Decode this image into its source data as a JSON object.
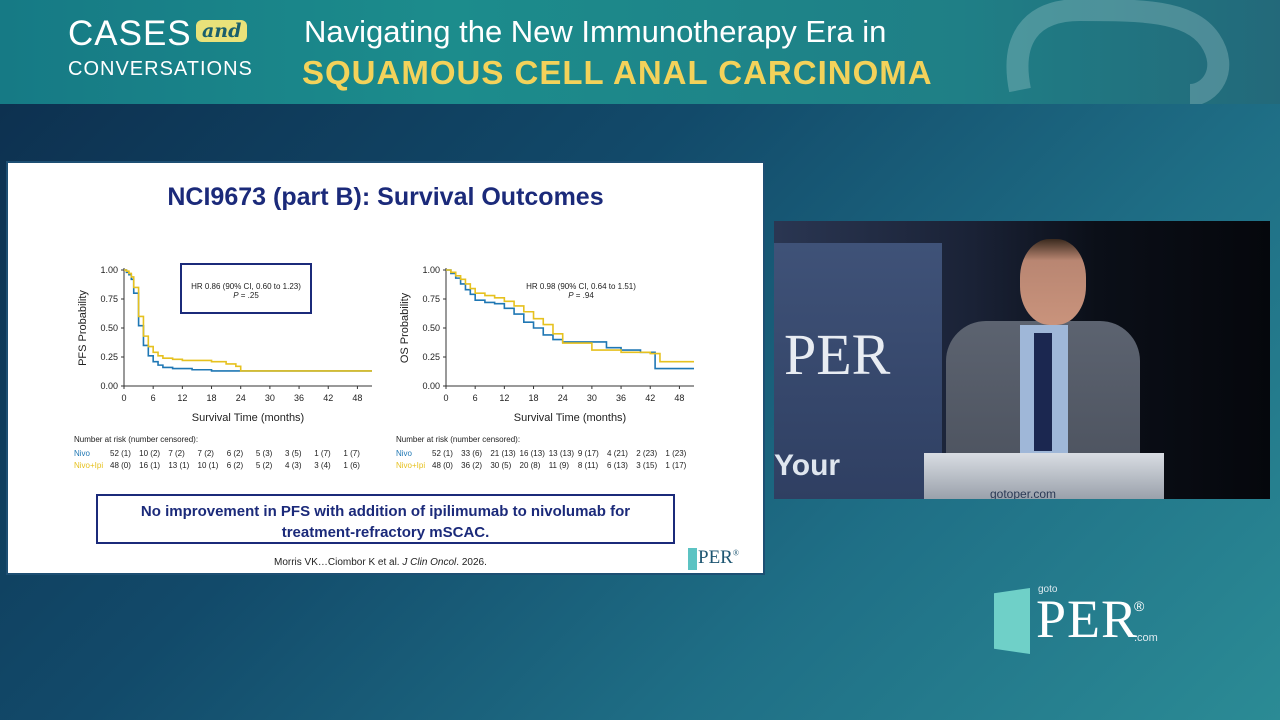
{
  "banner": {
    "brand_top": "CASES",
    "brand_and": "and",
    "brand_bottom": "CONVERSATIONS",
    "title_line1": "Navigating the New Immunotherapy Era in",
    "title_line2": "SQUAMOUS CELL ANAL CARCINOMA"
  },
  "slide": {
    "title": "NCI9673 (part B): Survival Outcomes",
    "conclusion_line1": "No improvement in PFS with addition of ipilimumab to nivolumab for",
    "conclusion_line2": "treatment-refractory mSCAC.",
    "citation_prefix": "Morris VK…Ciombor K et al. ",
    "citation_journal": "J Clin Oncol",
    "citation_year": ". 2026.",
    "per_logo": "PER",
    "per_reg": "®"
  },
  "chart_data": [
    {
      "type": "line",
      "panel": "PFS",
      "ylabel": "PFS Probability",
      "xlabel": "Survival Time (months)",
      "xticks": [
        "0",
        "6",
        "12",
        "18",
        "24",
        "30",
        "36",
        "42",
        "48"
      ],
      "yticks": [
        "0.00",
        "0.25",
        "0.50",
        "0.75",
        "1.00"
      ],
      "xlim": [
        0,
        51
      ],
      "ylim": [
        0,
        1
      ],
      "hr_line1": "HR 0.86 (90% CI, 0.60 to 1.23)",
      "hr_p_label": "P",
      "hr_p_value": " = .25",
      "series": [
        {
          "name": "Nivo",
          "color": "#1f77b4",
          "x": [
            0,
            0.5,
            1,
            1.5,
            2,
            3,
            4,
            5,
            6,
            7,
            8,
            10,
            12,
            14,
            18,
            24,
            30,
            36,
            42,
            48,
            51
          ],
          "y": [
            1.0,
            0.98,
            0.96,
            0.92,
            0.8,
            0.52,
            0.35,
            0.26,
            0.21,
            0.18,
            0.16,
            0.15,
            0.15,
            0.14,
            0.13,
            0.13,
            0.13,
            0.13,
            0.13,
            0.13,
            0.13
          ]
        },
        {
          "name": "Nivo+Ipi",
          "color": "#e6c11f",
          "x": [
            0,
            0.5,
            1,
            1.5,
            2,
            3,
            4,
            5,
            6,
            7,
            8,
            10,
            12,
            14,
            18,
            21,
            23,
            24,
            30,
            36,
            42,
            48,
            51
          ],
          "y": [
            1.0,
            0.99,
            0.97,
            0.94,
            0.85,
            0.6,
            0.43,
            0.34,
            0.29,
            0.26,
            0.24,
            0.23,
            0.22,
            0.22,
            0.21,
            0.19,
            0.17,
            0.13,
            0.13,
            0.13,
            0.13,
            0.13,
            0.13
          ]
        }
      ],
      "risk_header": "Number at risk (number censored):",
      "risk_rows": [
        {
          "label": "Nivo",
          "values": [
            "52 (1)",
            "10 (2)",
            "7 (2)",
            "7 (2)",
            "6 (2)",
            "5 (3)",
            "3 (5)",
            "1 (7)",
            "1 (7)"
          ]
        },
        {
          "label": "Nivo+Ipi",
          "values": [
            "48 (0)",
            "16 (1)",
            "13 (1)",
            "10 (1)",
            "6 (2)",
            "5 (2)",
            "4 (3)",
            "3 (4)",
            "1 (6)"
          ]
        }
      ]
    },
    {
      "type": "line",
      "panel": "OS",
      "ylabel": "OS Probability",
      "xlabel": "Survival Time (months)",
      "xticks": [
        "0",
        "6",
        "12",
        "18",
        "24",
        "30",
        "36",
        "42",
        "48"
      ],
      "yticks": [
        "0.00",
        "0.25",
        "0.50",
        "0.75",
        "1.00"
      ],
      "xlim": [
        0,
        51
      ],
      "ylim": [
        0,
        1
      ],
      "hr_line1": "HR 0.98 (90% CI, 0.64 to 1.51)",
      "hr_p_label": "P",
      "hr_p_value": " = .94",
      "series": [
        {
          "name": "Nivo",
          "color": "#1f77b4",
          "x": [
            0,
            1,
            2,
            3,
            4,
            5,
            6,
            8,
            10,
            12,
            14,
            16,
            18,
            20,
            22,
            24,
            30,
            33,
            36,
            40,
            42,
            43,
            48,
            51
          ],
          "y": [
            1.0,
            0.97,
            0.93,
            0.88,
            0.83,
            0.79,
            0.74,
            0.72,
            0.71,
            0.67,
            0.62,
            0.55,
            0.5,
            0.44,
            0.4,
            0.38,
            0.38,
            0.33,
            0.31,
            0.29,
            0.29,
            0.15,
            0.15,
            0.15
          ]
        },
        {
          "name": "Nivo+Ipi",
          "color": "#e6c11f",
          "x": [
            0,
            1,
            2,
            3,
            4,
            5,
            6,
            8,
            10,
            12,
            14,
            16,
            18,
            20,
            22,
            24,
            30,
            36,
            42,
            44,
            48,
            51
          ],
          "y": [
            1.0,
            0.98,
            0.95,
            0.92,
            0.88,
            0.84,
            0.8,
            0.78,
            0.76,
            0.73,
            0.69,
            0.64,
            0.58,
            0.53,
            0.45,
            0.37,
            0.31,
            0.29,
            0.28,
            0.21,
            0.21,
            0.21
          ]
        }
      ],
      "risk_header": "Number at risk (number censored):",
      "risk_rows": [
        {
          "label": "Nivo",
          "values": [
            "52 (1)",
            "33 (6)",
            "21 (13)",
            "16 (13)",
            "13 (13)",
            "9 (17)",
            "4 (21)",
            "2 (23)",
            "1 (23)"
          ]
        },
        {
          "label": "Nivo+Ipi",
          "values": [
            "48 (0)",
            "36 (2)",
            "30 (5)",
            "20 (8)",
            "11 (9)",
            "8 (11)",
            "6 (13)",
            "3 (15)",
            "1 (17)"
          ]
        }
      ]
    }
  ],
  "video": {
    "per_bg": "PER",
    "your_bg": "Your",
    "podium_label": "gotoper.com"
  },
  "logo": {
    "goto": "goto",
    "per": "PER",
    "reg": "®",
    "com": ".com"
  },
  "colors": {
    "nivo": "#1f77b4",
    "nivo_ipi": "#e6c11f",
    "title_blue": "#1b2a7a",
    "banner_yellow": "#f3d25a",
    "per_teal": "#6fd0c8"
  }
}
